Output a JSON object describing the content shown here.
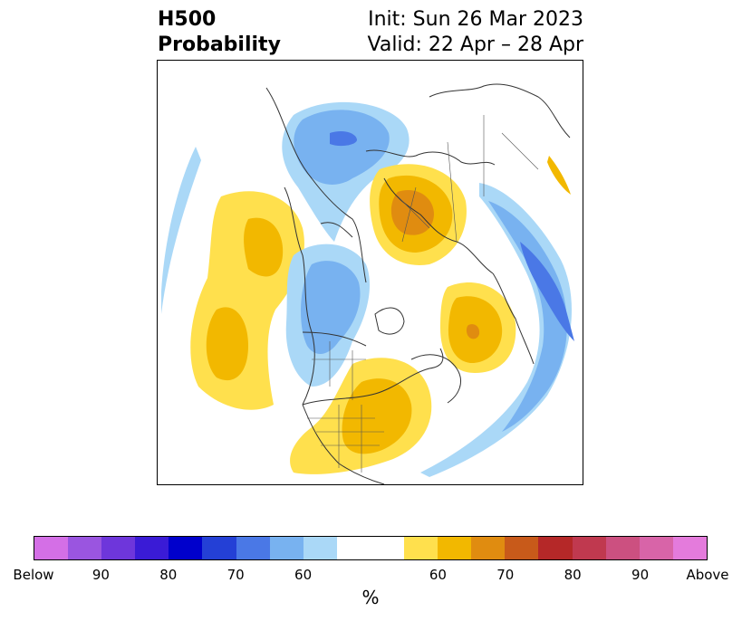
{
  "title": {
    "left_line1": "H500",
    "left_line2": "Probability",
    "right_line1": "Init: Sun 26 Mar 2023",
    "right_line2": "Valid: 22 Apr – 28 Apr"
  },
  "colorbar": {
    "colors": [
      "#d46fe6",
      "#9a55e0",
      "#6e36db",
      "#3a1bd6",
      "#0000cc",
      "#2440d6",
      "#4a78e6",
      "#78b2f0",
      "#aad8f7",
      "#ffffff",
      "#ffffff",
      "#ffe04d",
      "#f2b800",
      "#e08c10",
      "#c85a1a",
      "#b52828",
      "#c0394f",
      "#cc5080",
      "#d864a8",
      "#e47bdc"
    ],
    "tick_labels": [
      "Below",
      "90",
      "80",
      "70",
      "60",
      "60",
      "70",
      "80",
      "90",
      "Above"
    ],
    "unit_label": "%"
  },
  "map_colors": {
    "light_blue": "#aad8f7",
    "mid_blue": "#78b2f0",
    "blue": "#4a78e6",
    "yellow": "#ffe04d",
    "gold": "#f2b800",
    "orange": "#e08c10",
    "dark_orange": "#c85a1a",
    "coast": "#333333"
  }
}
